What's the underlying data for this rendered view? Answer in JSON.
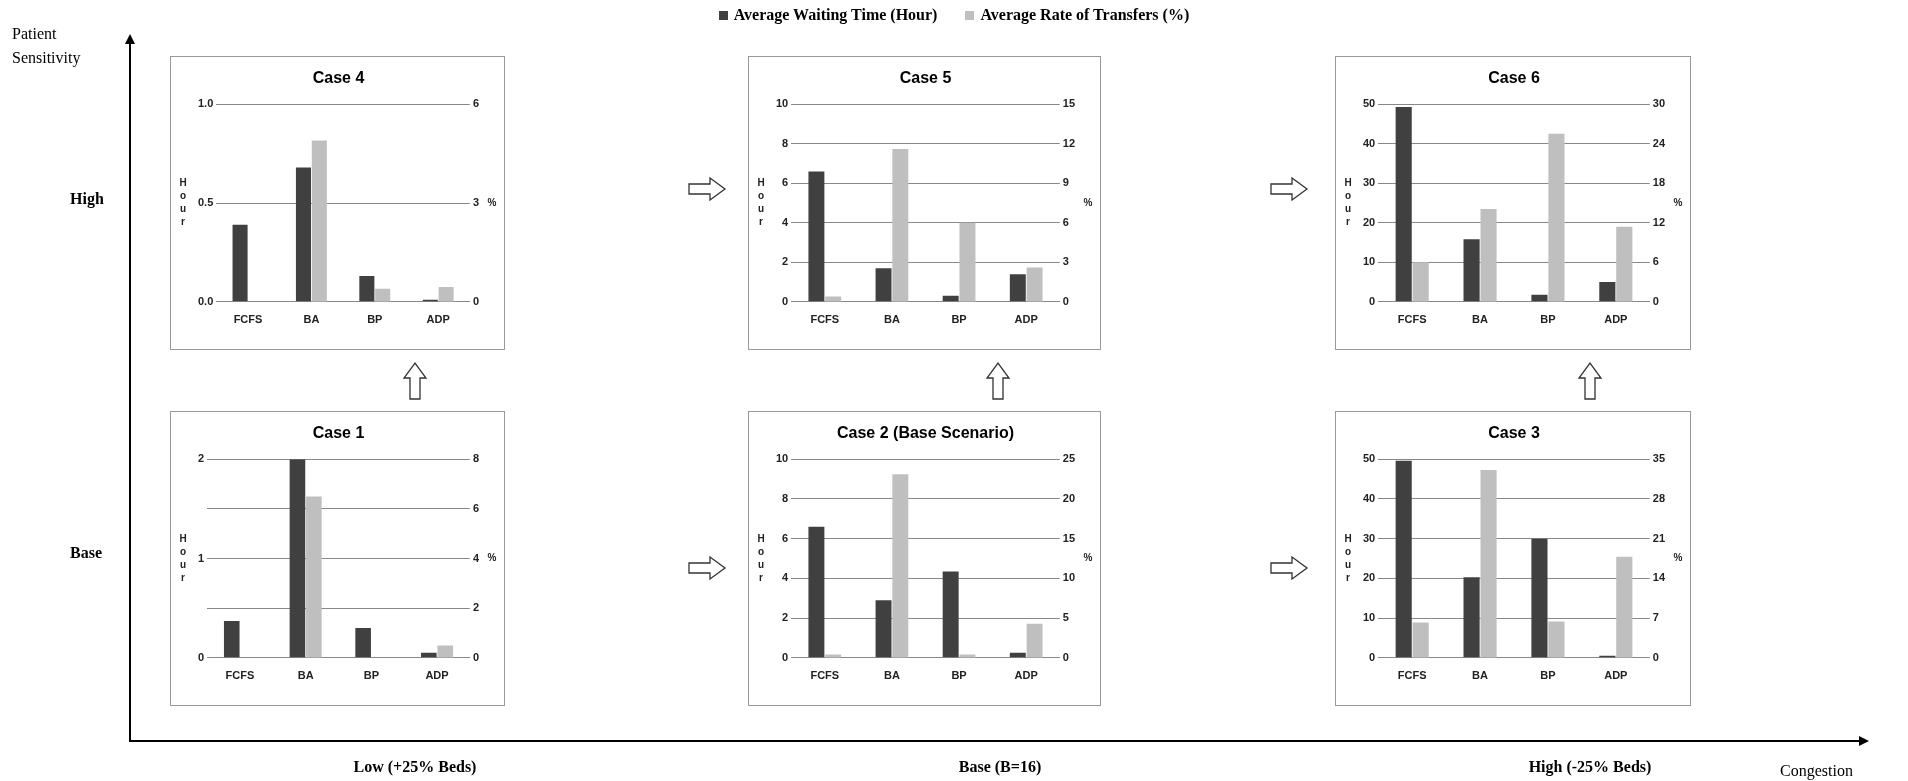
{
  "chart_data": [
    {
      "type": "bar",
      "title": "Case 4",
      "ylabel": "Hour",
      "y2label": "%",
      "categories": [
        "FCFS",
        "BA",
        "BP",
        "ADP"
      ],
      "series": [
        {
          "name": "Average Waiting Time (Hour)",
          "color": "#404040",
          "values": [
            0.39,
            0.68,
            0.13,
            0.01
          ]
        },
        {
          "name": "Average Rate of Transfers (%)",
          "color": "#bfbfbf",
          "axis": "y2",
          "values": [
            0,
            4.9,
            0.4,
            0.45
          ]
        }
      ],
      "ylim": [
        0,
        1
      ],
      "yticks": [
        {
          "value": 0,
          "label": "0.0"
        },
        {
          "value": 0.5,
          "label": "0.5"
        },
        {
          "value": 1,
          "label": "1.0"
        }
      ],
      "y2lim": [
        0,
        6
      ],
      "y2ticks": [
        0,
        3,
        6
      ],
      "grid": "y",
      "legend": "top",
      "annotations": [
        "Patient Sensitivity",
        "High",
        "Base",
        "Low (+25% Beds)",
        "Base (B=16)",
        "High (-25% Beds)",
        "Congestion"
      ]
    },
    {
      "type": "bar",
      "title": "Case 5",
      "ylabel": "Hour",
      "y2label": "%",
      "categories": [
        "FCFS",
        "BA",
        "BP",
        "ADP"
      ],
      "series": [
        {
          "color": "#404040",
          "values": [
            6.6,
            1.7,
            0.3,
            1.4
          ]
        },
        {
          "color": "#bfbfbf",
          "axis": "y2",
          "values": [
            0.4,
            11.6,
            6.0,
            2.6
          ]
        }
      ],
      "ylim": [
        0,
        10
      ],
      "yticks": [
        0,
        2,
        4,
        6,
        8,
        10
      ],
      "y2lim": [
        0,
        15
      ],
      "y2ticks": [
        0,
        3,
        6,
        9,
        12,
        15
      ],
      "grid": "y"
    },
    {
      "type": "bar",
      "title": "Case 6",
      "ylabel": "Hour",
      "y2label": "%",
      "categories": [
        "FCFS",
        "BA",
        "BP",
        "ADP"
      ],
      "series": [
        {
          "color": "#404040",
          "values": [
            49.3,
            15.8,
            1.8,
            5.0
          ]
        },
        {
          "color": "#bfbfbf",
          "axis": "y2",
          "values": [
            6.0,
            14.1,
            25.5,
            11.4
          ]
        }
      ],
      "ylim": [
        0,
        50
      ],
      "yticks": [
        0,
        10,
        20,
        30,
        40,
        50
      ],
      "y2lim": [
        0,
        30
      ],
      "y2ticks": [
        0,
        6,
        12,
        18,
        24,
        30
      ],
      "grid": "y"
    },
    {
      "type": "bar",
      "title": "Case 1",
      "ylabel": "Hour",
      "y2label": "%",
      "categories": [
        "FCFS",
        "BA",
        "BP",
        "ADP"
      ],
      "series": [
        {
          "color": "#404040",
          "values": [
            0.37,
            2.0,
            0.3,
            0.05
          ]
        },
        {
          "color": "#bfbfbf",
          "axis": "y2",
          "values": [
            0,
            6.5,
            0,
            0.5
          ]
        }
      ],
      "ylim": [
        0,
        2
      ],
      "yticks": [
        0,
        {
          "value": 0.5,
          "label": null
        },
        1,
        {
          "value": 1.5,
          "label": null
        },
        2
      ],
      "y2lim": [
        0,
        8
      ],
      "y2ticks": [
        0,
        2,
        4,
        6,
        8
      ],
      "grid": "y"
    },
    {
      "type": "bar",
      "title": "Case 2 (Base Scenario)",
      "ylabel": "Hour",
      "y2label": "%",
      "categories": [
        "FCFS",
        "BA",
        "BP",
        "ADP"
      ],
      "series": [
        {
          "color": "#404040",
          "values": [
            6.6,
            2.9,
            4.35,
            0.25
          ]
        },
        {
          "color": "#bfbfbf",
          "axis": "y2",
          "values": [
            0.4,
            23.1,
            0.4,
            4.3
          ]
        }
      ],
      "ylim": [
        0,
        10
      ],
      "yticks": [
        0,
        2,
        4,
        6,
        8,
        10
      ],
      "y2lim": [
        0,
        25
      ],
      "y2ticks": [
        0,
        5,
        10,
        15,
        20,
        25
      ],
      "grid": "y"
    },
    {
      "type": "bar",
      "title": "Case 3",
      "ylabel": "Hour",
      "y2label": "%",
      "categories": [
        "FCFS",
        "BA",
        "BP",
        "ADP"
      ],
      "series": [
        {
          "color": "#404040",
          "values": [
            49.6,
            20.3,
            30,
            0.5
          ]
        },
        {
          "color": "#bfbfbf",
          "axis": "y2",
          "values": [
            6.2,
            33.1,
            6.4,
            17.8
          ]
        }
      ],
      "ylim": [
        0,
        50
      ],
      "yticks": [
        0,
        10,
        20,
        30,
        40,
        50
      ],
      "y2lim": [
        0,
        35
      ],
      "y2ticks": [
        0,
        7,
        14,
        21,
        28,
        35
      ],
      "grid": "y"
    }
  ]
}
